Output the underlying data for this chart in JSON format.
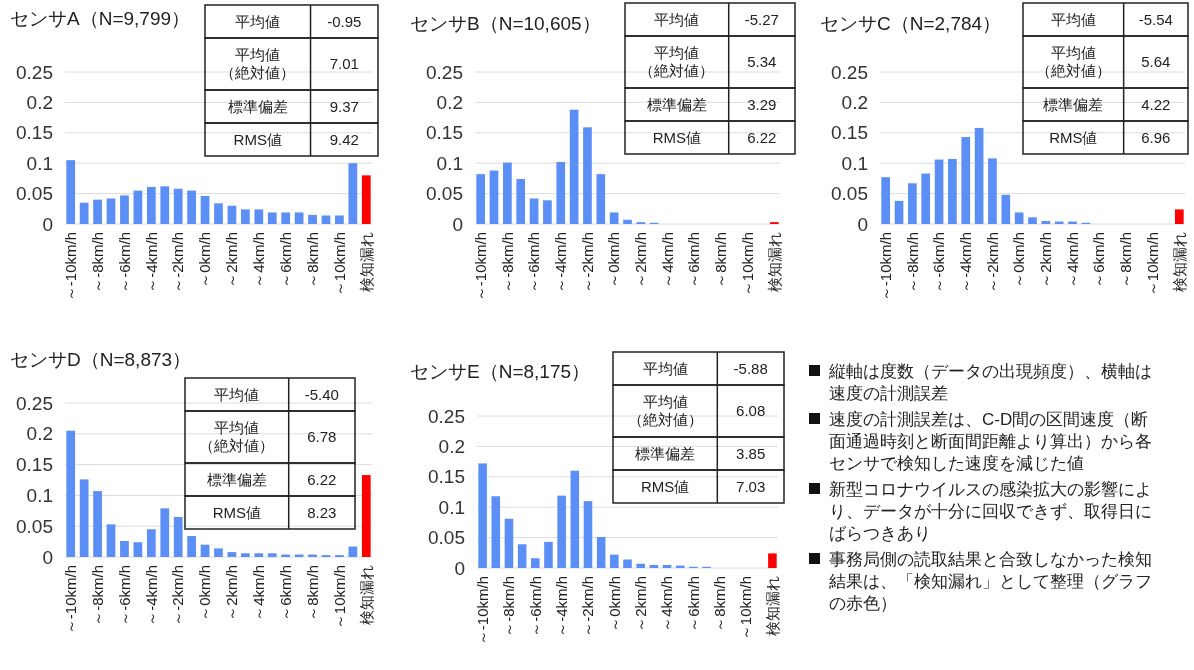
{
  "chart_data": [
    {
      "type": "bar",
      "title": "センサA（N=9,799）",
      "categories": [
        "～-10km/h",
        null,
        "～-8km/h",
        null,
        "～-6km/h",
        null,
        "～-4km/h",
        null,
        "～-2km/h",
        null,
        "～0km/h",
        null,
        "～2km/h",
        null,
        "～4km/h",
        null,
        "～6km/h",
        null,
        "～8km/h",
        null,
        "～10km/h",
        null,
        "検知漏れ"
      ],
      "values": [
        0.105,
        0.035,
        0.04,
        0.042,
        0.047,
        0.055,
        0.061,
        0.062,
        0.058,
        0.055,
        0.046,
        0.034,
        0.03,
        0.024,
        0.024,
        0.019,
        0.019,
        0.019,
        0.015,
        0.014,
        0.014,
        0.1,
        0.08
      ],
      "colors": [
        "#5b8ff5",
        "#5b8ff5",
        "#5b8ff5",
        "#5b8ff5",
        "#5b8ff5",
        "#5b8ff5",
        "#5b8ff5",
        "#5b8ff5",
        "#5b8ff5",
        "#5b8ff5",
        "#5b8ff5",
        "#5b8ff5",
        "#5b8ff5",
        "#5b8ff5",
        "#5b8ff5",
        "#5b8ff5",
        "#5b8ff5",
        "#5b8ff5",
        "#5b8ff5",
        "#5b8ff5",
        "#5b8ff5",
        "#5b8ff5",
        "#ff0000"
      ],
      "ylim": [
        0,
        0.25
      ],
      "yticks": [
        0,
        0.05,
        0.1,
        0.15,
        0.2,
        0.25
      ],
      "grid": "y",
      "annotations": [
        "平均値",
        "-0.95",
        "平均値（絶対値）",
        "7.01",
        "標準偏差",
        "9.37",
        "RMS値",
        "9.42"
      ]
    },
    {
      "type": "bar",
      "title": "センサB（N=10,605）",
      "categories": [
        "～-10km/h",
        null,
        "～-8km/h",
        null,
        "～-6km/h",
        null,
        "～-4km/h",
        null,
        "～-2km/h",
        null,
        "～0km/h",
        null,
        "～2km/h",
        null,
        "～4km/h",
        null,
        "～6km/h",
        null,
        "～8km/h",
        null,
        "～10km/h",
        null,
        "検知漏れ"
      ],
      "values": [
        0.082,
        0.088,
        0.101,
        0.074,
        0.042,
        0.039,
        0.102,
        0.188,
        0.159,
        0.082,
        0.019,
        0.007,
        0.003,
        0.002,
        0,
        0,
        0,
        0,
        0,
        0,
        0,
        0,
        0.003
      ],
      "colors": [
        "#5b8ff5",
        "#5b8ff5",
        "#5b8ff5",
        "#5b8ff5",
        "#5b8ff5",
        "#5b8ff5",
        "#5b8ff5",
        "#5b8ff5",
        "#5b8ff5",
        "#5b8ff5",
        "#5b8ff5",
        "#5b8ff5",
        "#5b8ff5",
        "#5b8ff5",
        "#5b8ff5",
        "#5b8ff5",
        "#5b8ff5",
        "#5b8ff5",
        "#5b8ff5",
        "#5b8ff5",
        "#5b8ff5",
        "#5b8ff5",
        "#ff0000"
      ],
      "ylim": [
        0,
        0.25
      ],
      "yticks": [
        0,
        0.05,
        0.1,
        0.15,
        0.2,
        0.25
      ],
      "grid": "y",
      "annotations": [
        "平均値",
        "-5.27",
        "平均値（絶対値）",
        "5.34",
        "標準偏差",
        "3.29",
        "RMS値",
        "6.22"
      ]
    },
    {
      "type": "bar",
      "title": "センサC（N=2,784）",
      "categories": [
        "～-10km/h",
        null,
        "～-8km/h",
        null,
        "～-6km/h",
        null,
        "～-4km/h",
        null,
        "～-2km/h",
        null,
        "～0km/h",
        null,
        "～2km/h",
        null,
        "～4km/h",
        null,
        "～6km/h",
        null,
        "～8km/h",
        null,
        "～10km/h",
        null,
        "検知漏れ"
      ],
      "values": [
        0.077,
        0.038,
        0.067,
        0.083,
        0.106,
        0.107,
        0.143,
        0.158,
        0.108,
        0.048,
        0.019,
        0.011,
        0.005,
        0.004,
        0.004,
        0.002,
        0,
        0,
        0,
        0,
        0,
        0,
        0.024
      ],
      "colors": [
        "#5b8ff5",
        "#5b8ff5",
        "#5b8ff5",
        "#5b8ff5",
        "#5b8ff5",
        "#5b8ff5",
        "#5b8ff5",
        "#5b8ff5",
        "#5b8ff5",
        "#5b8ff5",
        "#5b8ff5",
        "#5b8ff5",
        "#5b8ff5",
        "#5b8ff5",
        "#5b8ff5",
        "#5b8ff5",
        "#5b8ff5",
        "#5b8ff5",
        "#5b8ff5",
        "#5b8ff5",
        "#5b8ff5",
        "#5b8ff5",
        "#ff0000"
      ],
      "ylim": [
        0,
        0.25
      ],
      "yticks": [
        0,
        0.05,
        0.1,
        0.15,
        0.2,
        0.25
      ],
      "grid": "y",
      "annotations": [
        "平均値",
        "-5.54",
        "平均値（絶対値）",
        "5.64",
        "標準偏差",
        "4.22",
        "RMS値",
        "6.96"
      ]
    },
    {
      "type": "bar",
      "title": "センサD（N=8,873）",
      "categories": [
        "～-10km/h",
        null,
        "～-8km/h",
        null,
        "～-6km/h",
        null,
        "～-4km/h",
        null,
        "～-2km/h",
        null,
        "～0km/h",
        null,
        "～2km/h",
        null,
        "～4km/h",
        null,
        "～6km/h",
        null,
        "～8km/h",
        null,
        "～10km/h",
        null,
        "検知漏れ"
      ],
      "values": [
        0.205,
        0.126,
        0.107,
        0.053,
        0.026,
        0.024,
        0.045,
        0.079,
        0.065,
        0.034,
        0.02,
        0.014,
        0.008,
        0.006,
        0.006,
        0.006,
        0.004,
        0.004,
        0.004,
        0.003,
        0.003,
        0.017,
        0.133
      ],
      "colors": [
        "#5b8ff5",
        "#5b8ff5",
        "#5b8ff5",
        "#5b8ff5",
        "#5b8ff5",
        "#5b8ff5",
        "#5b8ff5",
        "#5b8ff5",
        "#5b8ff5",
        "#5b8ff5",
        "#5b8ff5",
        "#5b8ff5",
        "#5b8ff5",
        "#5b8ff5",
        "#5b8ff5",
        "#5b8ff5",
        "#5b8ff5",
        "#5b8ff5",
        "#5b8ff5",
        "#5b8ff5",
        "#5b8ff5",
        "#5b8ff5",
        "#ff0000"
      ],
      "ylim": [
        0,
        0.25
      ],
      "yticks": [
        0,
        0.05,
        0.1,
        0.15,
        0.2,
        0.25
      ],
      "grid": "y",
      "annotations": [
        "平均値",
        "-5.40",
        "平均値（絶対値）",
        "6.78",
        "標準偏差",
        "6.22",
        "RMS値",
        "8.23"
      ]
    },
    {
      "type": "bar",
      "title": "センサE（N=8,175）",
      "categories": [
        "～-10km/h",
        null,
        "～-8km/h",
        null,
        "～-6km/h",
        null,
        "～-4km/h",
        null,
        "～-2km/h",
        null,
        "～0km/h",
        null,
        "～2km/h",
        null,
        "～4km/h",
        null,
        "～6km/h",
        null,
        "～8km/h",
        null,
        "～10km/h",
        null,
        "検知漏れ"
      ],
      "values": [
        0.172,
        0.118,
        0.081,
        0.039,
        0.016,
        0.043,
        0.119,
        0.16,
        0.11,
        0.051,
        0.022,
        0.014,
        0.007,
        0.005,
        0.005,
        0.004,
        0.002,
        0.002,
        0,
        0,
        0,
        0,
        0.024
      ],
      "colors": [
        "#5b8ff5",
        "#5b8ff5",
        "#5b8ff5",
        "#5b8ff5",
        "#5b8ff5",
        "#5b8ff5",
        "#5b8ff5",
        "#5b8ff5",
        "#5b8ff5",
        "#5b8ff5",
        "#5b8ff5",
        "#5b8ff5",
        "#5b8ff5",
        "#5b8ff5",
        "#5b8ff5",
        "#5b8ff5",
        "#5b8ff5",
        "#5b8ff5",
        "#5b8ff5",
        "#5b8ff5",
        "#5b8ff5",
        "#5b8ff5",
        "#ff0000"
      ],
      "ylim": [
        0,
        0.25
      ],
      "yticks": [
        0,
        0.05,
        0.1,
        0.15,
        0.2,
        0.25
      ],
      "grid": "y",
      "annotations": [
        "平均値",
        "-5.88",
        "平均値（絶対値）",
        "6.08",
        "標準偏差",
        "3.85",
        "RMS値",
        "7.03"
      ]
    },
    {
      "type": "other",
      "annotations": [
        "縦軸は度数（データの出現頻度）、横軸は速度の計測誤差",
        "速度の計測誤差は、C-D間の区間速度（断面通過時刻と断面間距離より算出）から各センサで検知した速度を減じた値",
        "新型コロナウイルスの感染拡大の影響により、データが十分に回収できず、取得日にばらつきあり",
        "事務局側の読取結果と合致しなかった検知結果は、「検知漏れ」として整理（グラフの赤色）"
      ]
    }
  ]
}
